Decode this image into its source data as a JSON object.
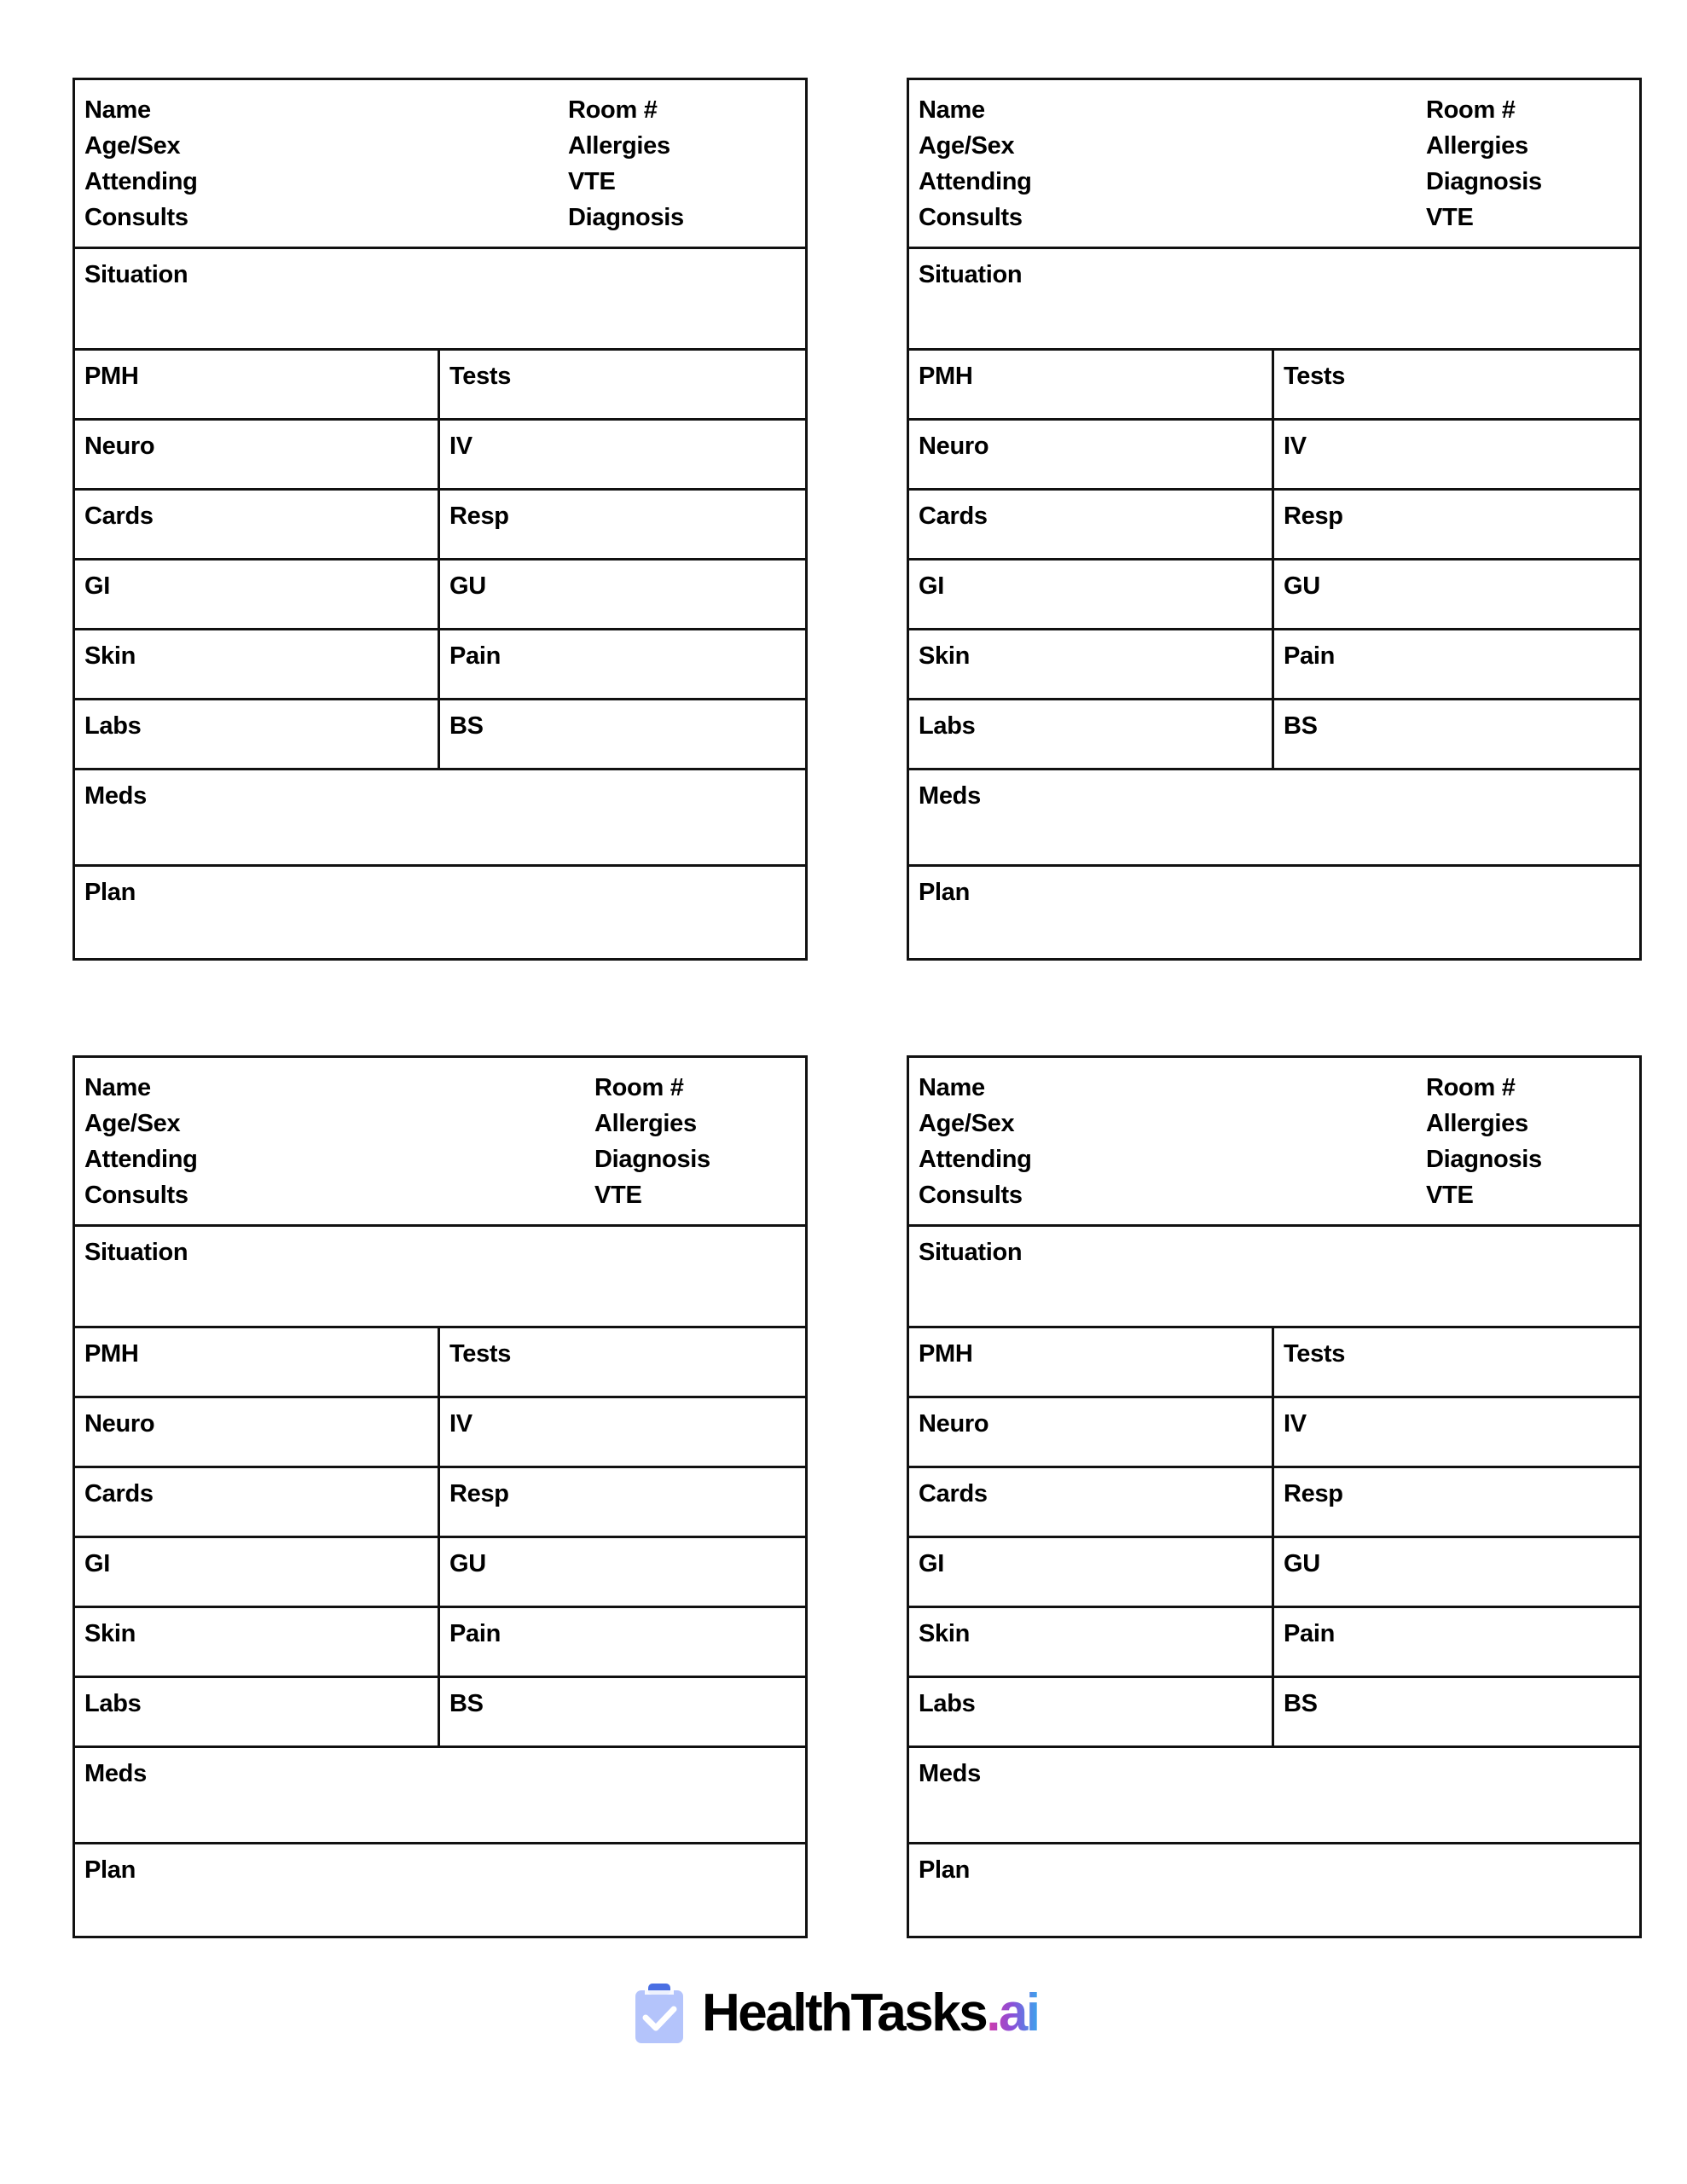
{
  "cards": [
    {
      "header_left": [
        "Name",
        "Age/Sex",
        "Attending",
        "Consults"
      ],
      "header_right": [
        "Room #",
        "Allergies",
        "VTE",
        "Diagnosis"
      ],
      "situation": "Situation",
      "rows": [
        [
          "PMH",
          "Tests"
        ],
        [
          "Neuro",
          "IV"
        ],
        [
          "Cards",
          "Resp"
        ],
        [
          "GI",
          "GU"
        ],
        [
          "Skin",
          "Pain"
        ],
        [
          "Labs",
          "BS"
        ]
      ],
      "meds": "Meds",
      "plan": "Plan"
    },
    {
      "header_left": [
        "Name",
        "Age/Sex",
        "Attending",
        "Consults"
      ],
      "header_right": [
        "Room #",
        "Allergies",
        "Diagnosis",
        "VTE"
      ],
      "situation": "Situation",
      "rows": [
        [
          "PMH",
          "Tests"
        ],
        [
          "Neuro",
          "IV"
        ],
        [
          "Cards",
          "Resp"
        ],
        [
          "GI",
          "GU"
        ],
        [
          "Skin",
          "Pain"
        ],
        [
          "Labs",
          "BS"
        ]
      ],
      "meds": "Meds",
      "plan": "Plan"
    },
    {
      "header_left": [
        "Name",
        "Age/Sex",
        "Attending",
        "Consults"
      ],
      "header_right": [
        "Room #",
        "Allergies",
        "Diagnosis",
        "VTE"
      ],
      "situation": "Situation",
      "rows": [
        [
          "PMH",
          "Tests"
        ],
        [
          "Neuro",
          "IV"
        ],
        [
          "Cards",
          "Resp"
        ],
        [
          "GI",
          "GU"
        ],
        [
          "Skin",
          "Pain"
        ],
        [
          "Labs",
          "BS"
        ]
      ],
      "meds": "Meds",
      "plan": "Plan"
    },
    {
      "header_left": [
        "Name",
        "Age/Sex",
        "Attending",
        "Consults"
      ],
      "header_right": [
        "Room #",
        "Allergies",
        "Diagnosis",
        "VTE"
      ],
      "situation": "Situation",
      "rows": [
        [
          "PMH",
          "Tests"
        ],
        [
          "Neuro",
          "IV"
        ],
        [
          "Cards",
          "Resp"
        ],
        [
          "GI",
          "GU"
        ],
        [
          "Skin",
          "Pain"
        ],
        [
          "Labs",
          "BS"
        ]
      ],
      "meds": "Meds",
      "plan": "Plan"
    }
  ],
  "footer": {
    "logo_text_main": "HealthTasks",
    "logo_text_suffix": ".ai",
    "icon": "clipboard-check-icon",
    "colors": {
      "icon_body": "#b4c4fb",
      "icon_clip": "#4a6fe3",
      "suffix_gradient": [
        "#d63aa8",
        "#3aa6ee"
      ]
    }
  }
}
